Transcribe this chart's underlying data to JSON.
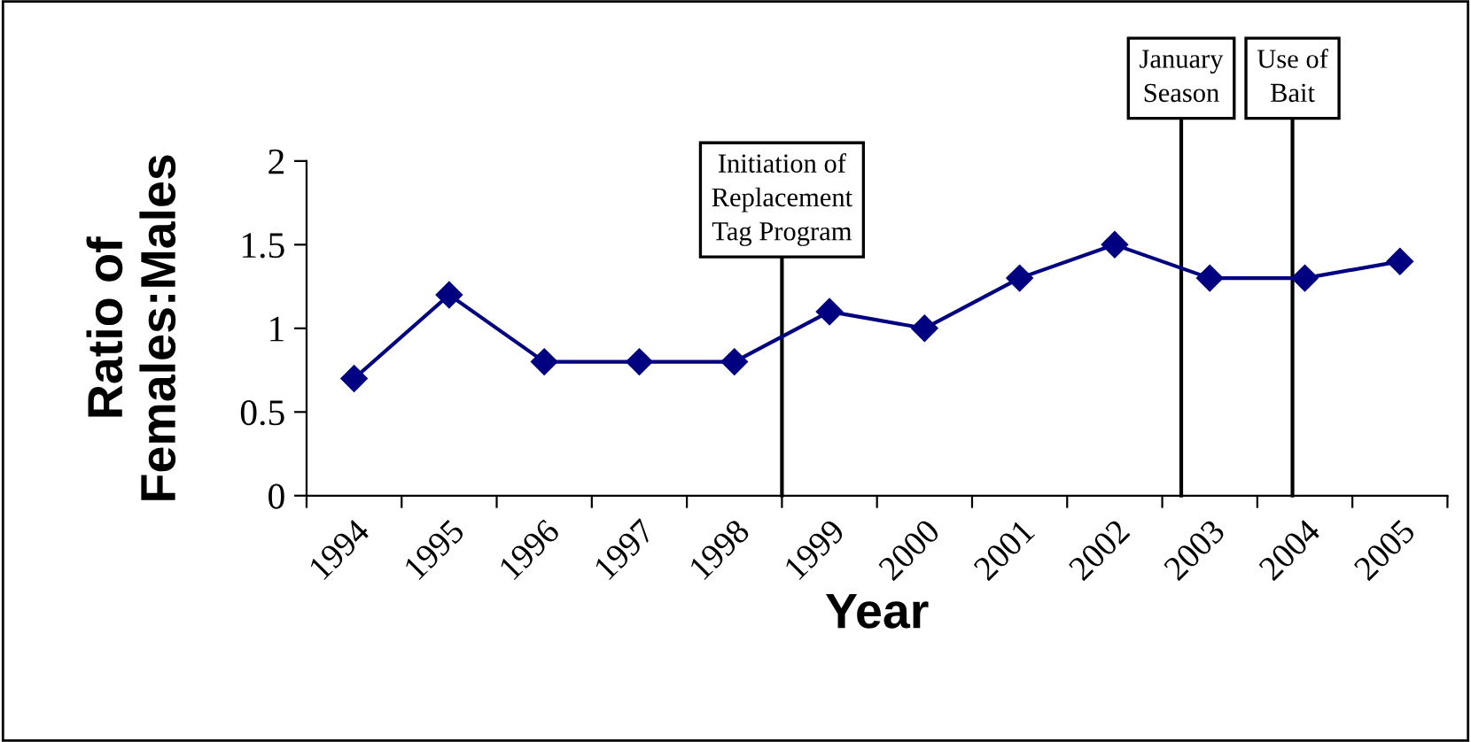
{
  "chart_data": {
    "type": "line",
    "xlabel": "Year",
    "ylabel": "Ratio of\nFemales:Males",
    "x": [
      1994,
      1995,
      1996,
      1997,
      1998,
      1999,
      2000,
      2001,
      2002,
      2003,
      2004,
      2005
    ],
    "series": [
      {
        "color": "#000080",
        "values": [
          0.7,
          1.2,
          0.8,
          0.8,
          0.8,
          1.1,
          1.0,
          1.3,
          1.5,
          1.3,
          1.3,
          1.4
        ]
      }
    ],
    "xlim": [
      1993.5,
      2005.5
    ],
    "xticks": [
      {
        "value": 1993.5,
        "label": null
      },
      {
        "value": 1994.5,
        "label": null
      },
      {
        "value": 1995.5,
        "label": null
      },
      {
        "value": 1996.5,
        "label": null
      },
      {
        "value": 1997.5,
        "label": null
      },
      {
        "value": 1998.5,
        "label": null
      },
      {
        "value": 1999.5,
        "label": null
      },
      {
        "value": 2000.5,
        "label": null
      },
      {
        "value": 2001.5,
        "label": null
      },
      {
        "value": 2002.5,
        "label": null
      },
      {
        "value": 2003.5,
        "label": null
      },
      {
        "value": 2004.5,
        "label": null
      },
      {
        "value": 2005.5,
        "label": null
      },
      1994,
      1995,
      1996,
      1997,
      1998,
      1999,
      2000,
      2001,
      2002,
      2003,
      2004,
      2005
    ],
    "ylim": [
      0,
      2
    ],
    "yticks": [
      0,
      0.5,
      1,
      1.5,
      2
    ],
    "ref_lines": [
      {
        "axis": "x",
        "value": 1998.5,
        "label": "Initiation of\nReplacement\nTag Program",
        "color": "#000000"
      },
      {
        "axis": "x",
        "value": 2002.7,
        "label": "January\nSeason",
        "color": "#000000"
      },
      {
        "axis": "x",
        "value": 2003.87,
        "label": "Use of\nBait",
        "color": "#000000"
      }
    ],
    "marker": "diamond",
    "line_style": "solid",
    "grid": false,
    "legend": false
  }
}
